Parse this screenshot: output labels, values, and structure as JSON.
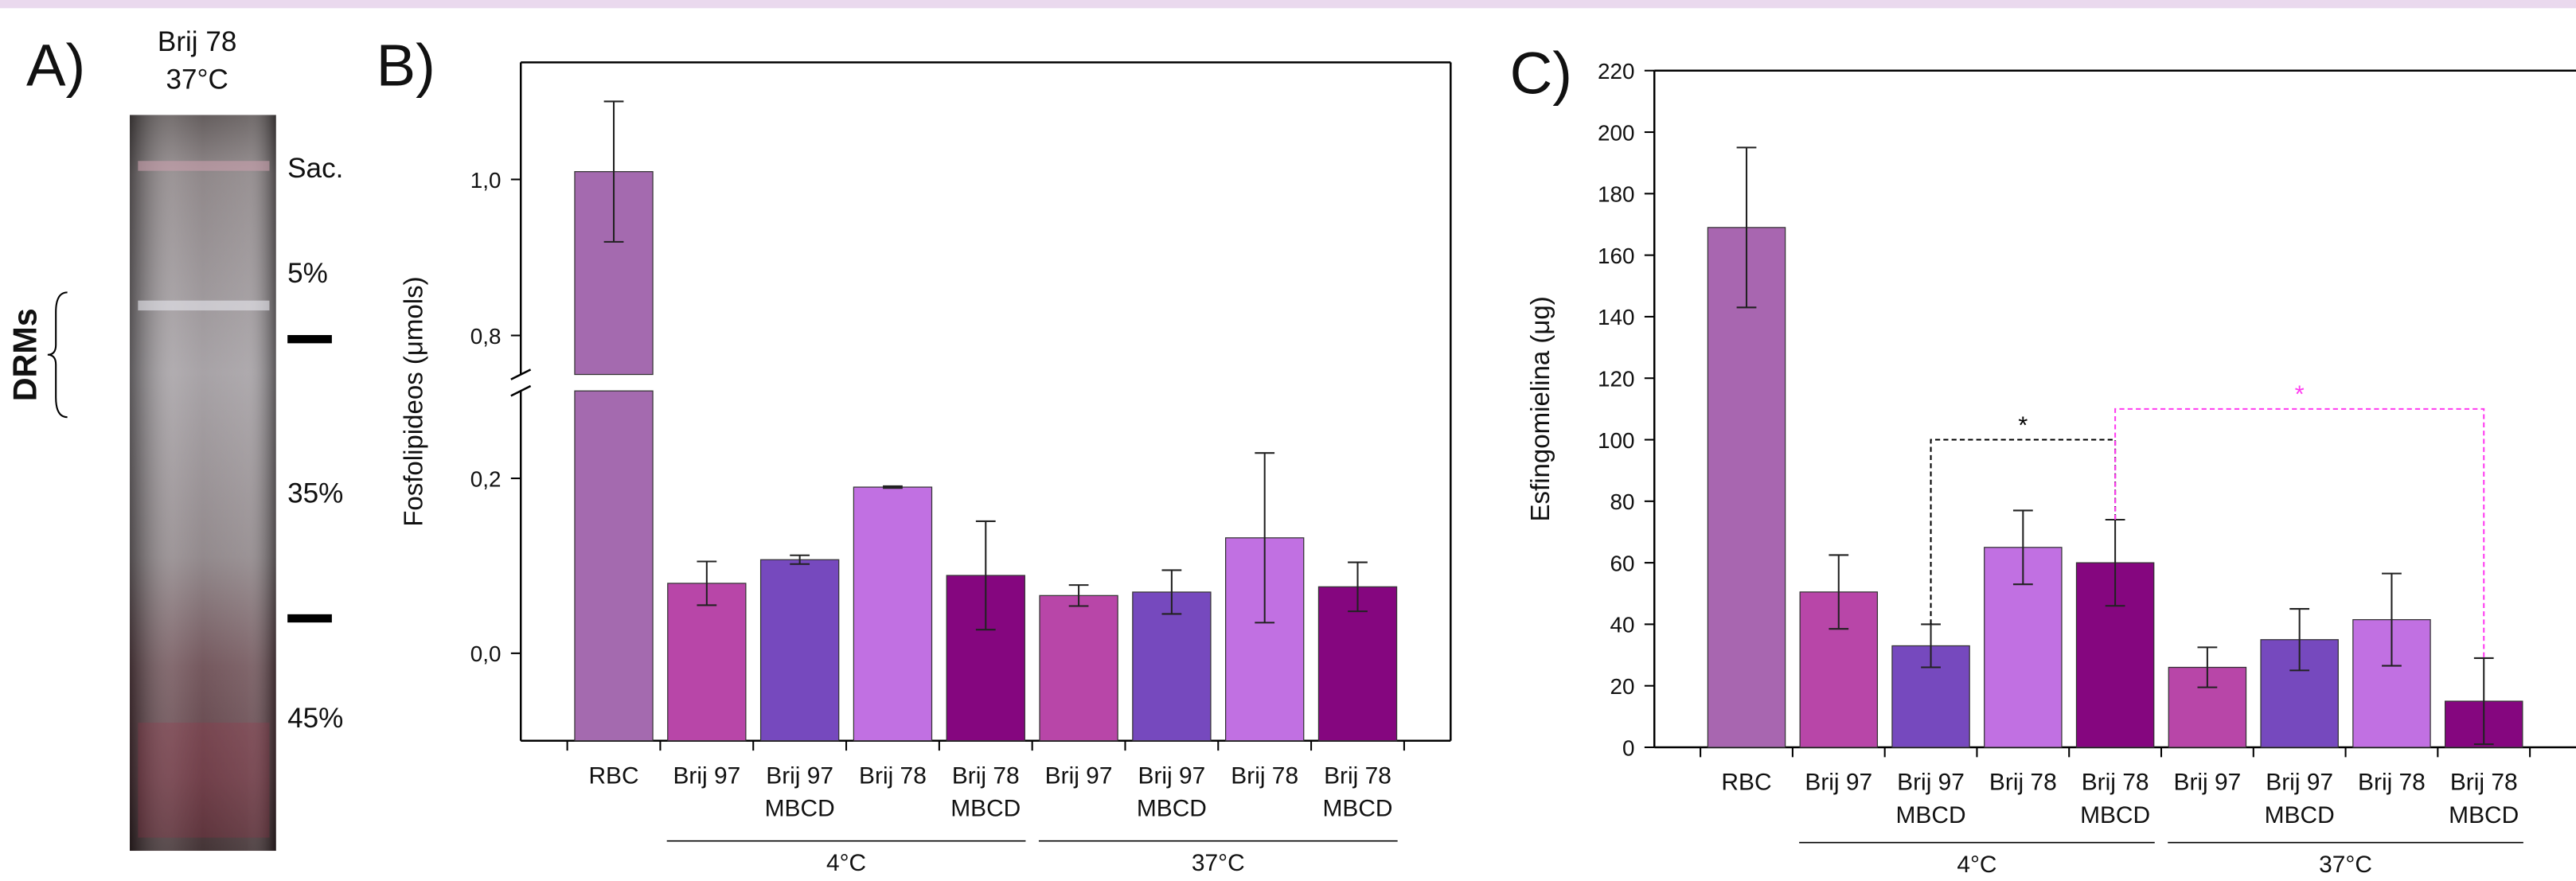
{
  "panel_a": {
    "panel_label": "A)",
    "title": [
      "Brij 78",
      "37°C"
    ],
    "side_label": "DRMs",
    "fractions": [
      "Sac.",
      "5%",
      "35%",
      "45%"
    ]
  },
  "chart_data": [
    {
      "type": "bar",
      "panel_label": "B)",
      "ylabel": "Fosfolipideos (μmols)",
      "categories": [
        [
          "RBC"
        ],
        [
          "Brij 97"
        ],
        [
          "Brij 97",
          "MBCD"
        ],
        [
          "Brij 78"
        ],
        [
          "Brij 78",
          "MBCD"
        ],
        [
          "Brij 97"
        ],
        [
          "Brij 97",
          "MBCD"
        ],
        [
          "Brij 78"
        ],
        [
          "Brij 78",
          "MBCD"
        ]
      ],
      "values": [
        1.01,
        0.08,
        0.107,
        0.19,
        0.089,
        0.066,
        0.07,
        0.132,
        0.076
      ],
      "errors": [
        0.09,
        0.025,
        0.005,
        0.001,
        0.062,
        0.012,
        0.025,
        0.097,
        0.028
      ],
      "colors": [
        "#a46aaf",
        "#b846a8",
        "#7649be",
        "#c170e2",
        "#85067f",
        "#b846a8",
        "#7649be",
        "#c170e2",
        "#85067f"
      ],
      "ylim": [
        -0.1,
        1.15
      ],
      "ybreak": [
        0.3,
        0.75
      ],
      "yticks": [
        {
          "value": 0,
          "label": "0,0"
        },
        {
          "value": 0.2,
          "label": "0,2"
        },
        {
          "value": 0.8,
          "label": "0,8"
        },
        {
          "value": 1.0,
          "label": "1,0"
        }
      ],
      "groups": [
        {
          "label": "4°C",
          "members": [
            1,
            2,
            3,
            4
          ]
        },
        {
          "label": "37°C",
          "members": [
            5,
            6,
            7,
            8
          ]
        }
      ]
    },
    {
      "type": "bar",
      "panel_label": "C)",
      "ylabel": "Esfingomielina (μg)",
      "categories": [
        [
          "RBC"
        ],
        [
          "Brij 97"
        ],
        [
          "Brij 97",
          "MBCD"
        ],
        [
          "Brij 78"
        ],
        [
          "Brij 78",
          "MBCD"
        ],
        [
          "Brij 97"
        ],
        [
          "Brij 97",
          "MBCD"
        ],
        [
          "Brij 78"
        ],
        [
          "Brij 78",
          "MBCD"
        ]
      ],
      "values": [
        169,
        50.5,
        33,
        65,
        60,
        26,
        35,
        41.5,
        15
      ],
      "errors": [
        26,
        12,
        7,
        12,
        14,
        6.5,
        10,
        15,
        14
      ],
      "colors": [
        "#a866b0",
        "#b846a8",
        "#7649be",
        "#c170e2",
        "#85067f",
        "#b846a8",
        "#7649be",
        "#c170e2",
        "#85067f"
      ],
      "ylim": [
        0,
        220
      ],
      "yticks": [
        0,
        20,
        40,
        60,
        80,
        100,
        120,
        140,
        160,
        180,
        200,
        220
      ],
      "groups": [
        {
          "label": "4°C",
          "members": [
            1,
            2,
            3,
            4
          ]
        },
        {
          "label": "37°C",
          "members": [
            5,
            6,
            7,
            8
          ]
        }
      ],
      "annotations": [
        {
          "text": "*",
          "from": 2,
          "to": 4,
          "y": 100,
          "color": "#000000"
        },
        {
          "text": "*",
          "from": 4,
          "to": 8,
          "y": 110,
          "color": "#ff3cf0"
        }
      ]
    }
  ]
}
